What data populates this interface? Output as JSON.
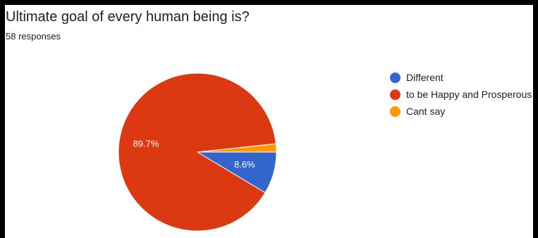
{
  "chart_data": {
    "type": "pie",
    "title": "Ultimate goal of every human being is?",
    "subtitle": "58 responses",
    "categories": [
      "Different",
      "to be Happy and Prosperous",
      "Cant say"
    ],
    "values": [
      8.6,
      89.7,
      1.7
    ],
    "data_labels": [
      "8.6%",
      "89.7%",
      ""
    ],
    "colors": [
      "#3366cc",
      "#dc3912",
      "#ff9900"
    ],
    "legend_position": "right"
  }
}
